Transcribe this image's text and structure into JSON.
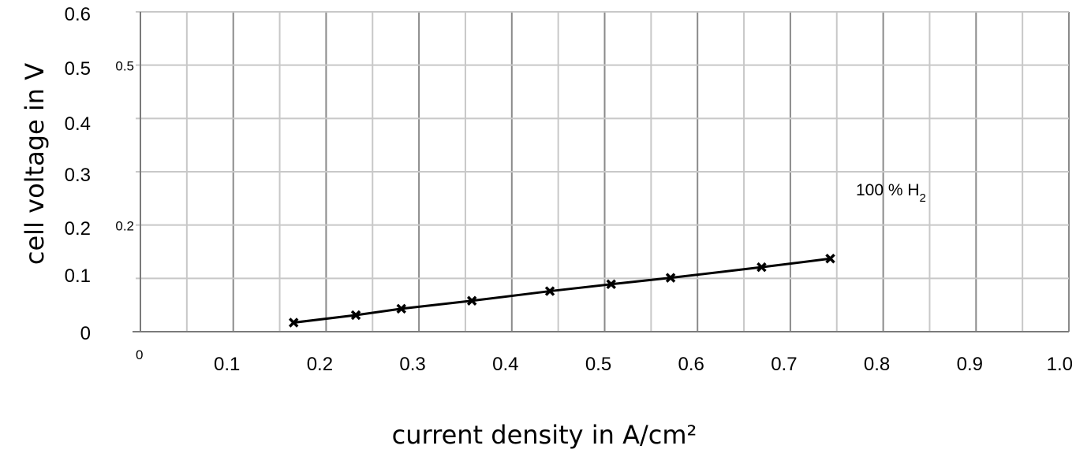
{
  "chart_data": {
    "type": "line",
    "xlabel": "current density in A/cm²",
    "ylabel": "cell voltage in V",
    "xlim": [
      0,
      1.0
    ],
    "ylim": [
      0,
      0.6
    ],
    "x_ticks": [
      "0",
      "0.1",
      "0.2",
      "0.3",
      "0.4",
      "0.5",
      "0.6",
      "0.7",
      "0.8",
      "0.9",
      "1.0"
    ],
    "y_ticks": [
      "0",
      "0.1",
      "0.2",
      "0.3",
      "0.4",
      "0.5",
      "0.6"
    ],
    "y_overlap_labels": [
      "0.5",
      "0.2"
    ],
    "grid": true,
    "series": [
      {
        "name": "100 % H2",
        "label_main": "100 % H",
        "label_sub": "2",
        "color": "#000000",
        "marker": "x",
        "x": [
          0.165,
          0.232,
          0.281,
          0.357,
          0.441,
          0.507,
          0.571,
          0.669,
          0.743
        ],
        "y": [
          0.017,
          0.031,
          0.043,
          0.058,
          0.076,
          0.089,
          0.101,
          0.121,
          0.137
        ]
      }
    ]
  }
}
